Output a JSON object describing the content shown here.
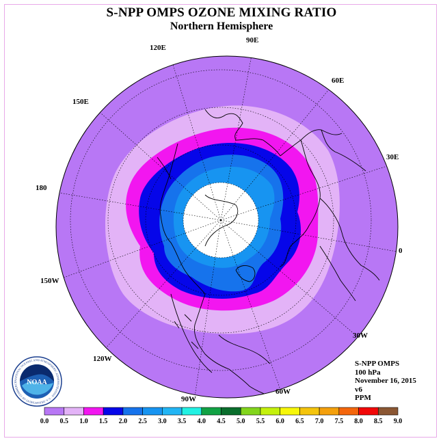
{
  "title": "S-NPP OMPS OZONE MIXING RATIO",
  "subtitle": "Northern Hemisphere",
  "longitude_labels": [
    "90E",
    "60E",
    "30E",
    "0",
    "30W",
    "60W",
    "90W",
    "120W",
    "150W",
    "180",
    "150E",
    "120E"
  ],
  "info": {
    "instrument": "S-NPP OMPS",
    "level": "100 hPa",
    "date": "November 16, 2015",
    "version": "v6",
    "units": "PPM"
  },
  "logo": {
    "text": "NOAA",
    "ring_text": "NATIONAL OCEANIC AND ATMOSPHERIC ADMINISTRATION · U.S. DEPARTMENT OF COMMERCE"
  },
  "colorbar": {
    "labels": [
      "0.0",
      "0.5",
      "1.0",
      "1.5",
      "2.0",
      "2.5",
      "3.0",
      "3.5",
      "4.0",
      "4.5",
      "5.0",
      "5.5",
      "6.0",
      "6.5",
      "7.0",
      "7.5",
      "8.0",
      "8.5",
      "9.0"
    ],
    "colors": [
      "#b877f5",
      "#e3b3f7",
      "#f216f0",
      "#0606e9",
      "#1673ec",
      "#1794f1",
      "#22b5f4",
      "#22f1e3",
      "#11a244",
      "#0a6e2c",
      "#82d51c",
      "#c4f10c",
      "#f7f709",
      "#f4c40c",
      "#f4a00c",
      "#f4660c",
      "#f20808",
      "#8b5733"
    ]
  },
  "colors": {
    "background_contour": "#b877f5",
    "land_outline": "#000000"
  }
}
